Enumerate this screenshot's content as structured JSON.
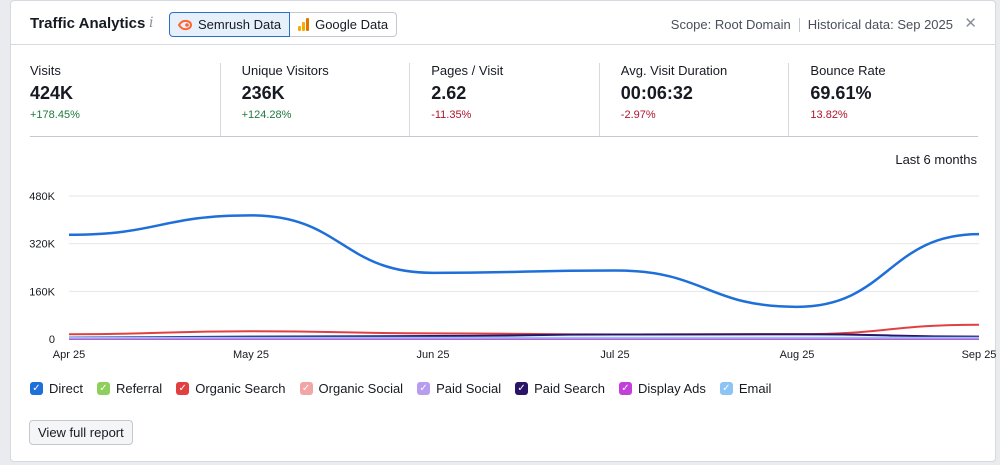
{
  "header": {
    "title": "Traffic Analytics",
    "info_glyph": "i",
    "sources": [
      {
        "label": "Semrush Data",
        "icon": "semrush-logo-icon",
        "active": true
      },
      {
        "label": "Google Data",
        "icon": "google-analytics-icon",
        "active": false
      }
    ],
    "scope": "Scope: Root Domain",
    "historical": "Historical data: Sep 2025",
    "close_glyph": "✕"
  },
  "metrics": [
    {
      "label": "Visits",
      "value": "424K",
      "change": "+178.45%",
      "trend": "up"
    },
    {
      "label": "Unique Visitors",
      "value": "236K",
      "change": "+124.28%",
      "trend": "up"
    },
    {
      "label": "Pages / Visit",
      "value": "2.62",
      "change": "-11.35%",
      "trend": "down"
    },
    {
      "label": "Avg. Visit Duration",
      "value": "00:06:32",
      "change": "-2.97%",
      "trend": "down"
    },
    {
      "label": "Bounce Rate",
      "value": "69.61%",
      "change": "13.82%",
      "trend": "down"
    }
  ],
  "colors": {
    "up": "#1f7a3e",
    "down": "#b0142c"
  },
  "period": "Last 6 months",
  "chart_data": {
    "type": "line",
    "x": [
      "Apr 25",
      "May 25",
      "Jun 25",
      "Jul 25",
      "Aug 25",
      "Sep 25"
    ],
    "y_ticks": [
      "480K",
      "320K",
      "160K",
      "0"
    ],
    "ylim": [
      0,
      480000
    ],
    "grid": true,
    "legend": "bottom",
    "series": [
      {
        "name": "Direct",
        "color": "#1e6fd9",
        "values": [
          350000,
          415000,
          222000,
          230000,
          108000,
          352000
        ]
      },
      {
        "name": "Referral",
        "color": "#8fcf5e",
        "values": [
          2000,
          2000,
          2000,
          2000,
          2000,
          2000
        ]
      },
      {
        "name": "Organic Search",
        "color": "#e04040",
        "values": [
          16000,
          26000,
          19000,
          15000,
          16000,
          48000
        ]
      },
      {
        "name": "Organic Social",
        "color": "#f2a5a5",
        "values": [
          1000,
          1000,
          1000,
          1000,
          1000,
          1000
        ]
      },
      {
        "name": "Paid Social",
        "color": "#b79cf0",
        "values": [
          3000,
          3000,
          3000,
          3000,
          3000,
          3000
        ]
      },
      {
        "name": "Paid Search",
        "color": "#2a1466",
        "values": [
          5000,
          8000,
          10000,
          15000,
          16000,
          8000
        ]
      },
      {
        "name": "Display Ads",
        "color": "#c23fd9",
        "values": [
          500,
          500,
          500,
          500,
          500,
          500
        ]
      },
      {
        "name": "Email",
        "color": "#8cc4f5",
        "values": [
          4000,
          4000,
          4000,
          4000,
          4000,
          4000
        ]
      }
    ]
  },
  "footer": {
    "view_report": "View full report"
  }
}
